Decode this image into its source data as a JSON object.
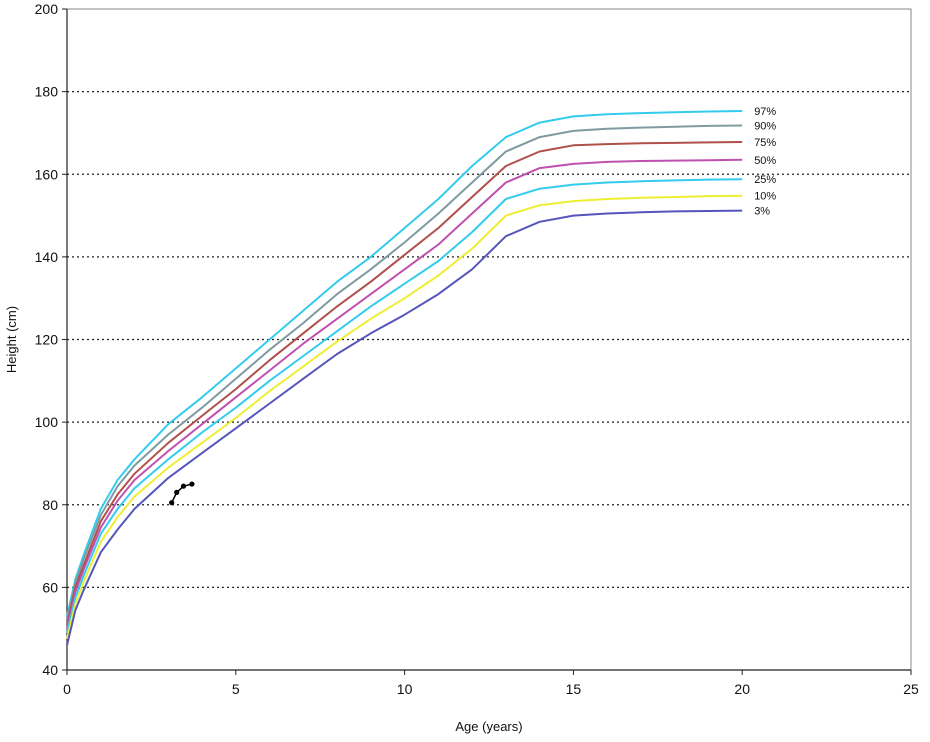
{
  "chart_data": {
    "type": "line",
    "xlabel": "Age (years)",
    "ylabel": "Height (cm)",
    "xlim": [
      0,
      25
    ],
    "ylim": [
      40,
      200
    ],
    "x_ticks": [
      0,
      5,
      10,
      15,
      20,
      25
    ],
    "y_ticks": [
      40,
      60,
      80,
      100,
      120,
      140,
      160,
      180,
      200
    ],
    "grid": "horizontal dotted",
    "x": [
      0,
      0.25,
      0.5,
      1,
      1.5,
      2,
      3,
      4,
      5,
      6,
      7,
      8,
      9,
      10,
      11,
      12,
      13,
      14,
      15,
      16,
      17,
      18,
      19,
      20
    ],
    "series": [
      {
        "name": "97%",
        "color": "#33ccee",
        "values": [
          53,
          62,
          68,
          79,
          86,
          91,
          99.5,
          106,
          113,
          120,
          127,
          134,
          140,
          147,
          154,
          162,
          169,
          172.5,
          174,
          174.5,
          174.8,
          175,
          175.2,
          175.3
        ]
      },
      {
        "name": "90%",
        "color": "#7f9aa0",
        "values": [
          52,
          61,
          67,
          77.5,
          84.5,
          89.5,
          97,
          103.5,
          110.5,
          117.5,
          124,
          131,
          137,
          143.5,
          150.5,
          158,
          165.5,
          169,
          170.5,
          171,
          171.3,
          171.5,
          171.7,
          171.8
        ]
      },
      {
        "name": "75%",
        "color": "#b0504a",
        "values": [
          51,
          60,
          65.5,
          76,
          82.5,
          87.5,
          95,
          101.5,
          108,
          115,
          121.5,
          128,
          134,
          140.5,
          147,
          154.5,
          162,
          165.5,
          167,
          167.3,
          167.5,
          167.6,
          167.7,
          167.8
        ]
      },
      {
        "name": "50%",
        "color": "#c050b0",
        "values": [
          50,
          59,
          64.5,
          74.5,
          81,
          86,
          93,
          99.5,
          106,
          112.5,
          119,
          125,
          131,
          137,
          143,
          150.5,
          158,
          161.5,
          162.5,
          163,
          163.2,
          163.3,
          163.4,
          163.5
        ]
      },
      {
        "name": "25%",
        "color": "#33ccee",
        "values": [
          49,
          57.5,
          63,
          73,
          79,
          84,
          91,
          97.5,
          103.5,
          110,
          116,
          122,
          128,
          133.5,
          139,
          146,
          154,
          156.5,
          157.5,
          158,
          158.3,
          158.5,
          158.7,
          158.8
        ]
      },
      {
        "name": "10%",
        "color": "#eeee33",
        "values": [
          47.5,
          56,
          61.5,
          71,
          77,
          82,
          89,
          95,
          101,
          107.5,
          113.5,
          119.5,
          125,
          130,
          135.5,
          142,
          150,
          152.5,
          153.5,
          154,
          154.3,
          154.5,
          154.7,
          154.8
        ]
      },
      {
        "name": "3%",
        "color": "#5555bb",
        "values": [
          46,
          54.5,
          59.5,
          68.5,
          74,
          79,
          86.5,
          92.5,
          98.5,
          104.5,
          110.5,
          116.5,
          121.5,
          126,
          131,
          137,
          145,
          148.5,
          150,
          150.5,
          150.8,
          151,
          151.1,
          151.2
        ]
      }
    ],
    "patient": {
      "color": "#000000",
      "x": [
        3.1,
        3.25,
        3.45,
        3.7
      ],
      "y": [
        80.5,
        83,
        84.5,
        85
      ]
    }
  }
}
